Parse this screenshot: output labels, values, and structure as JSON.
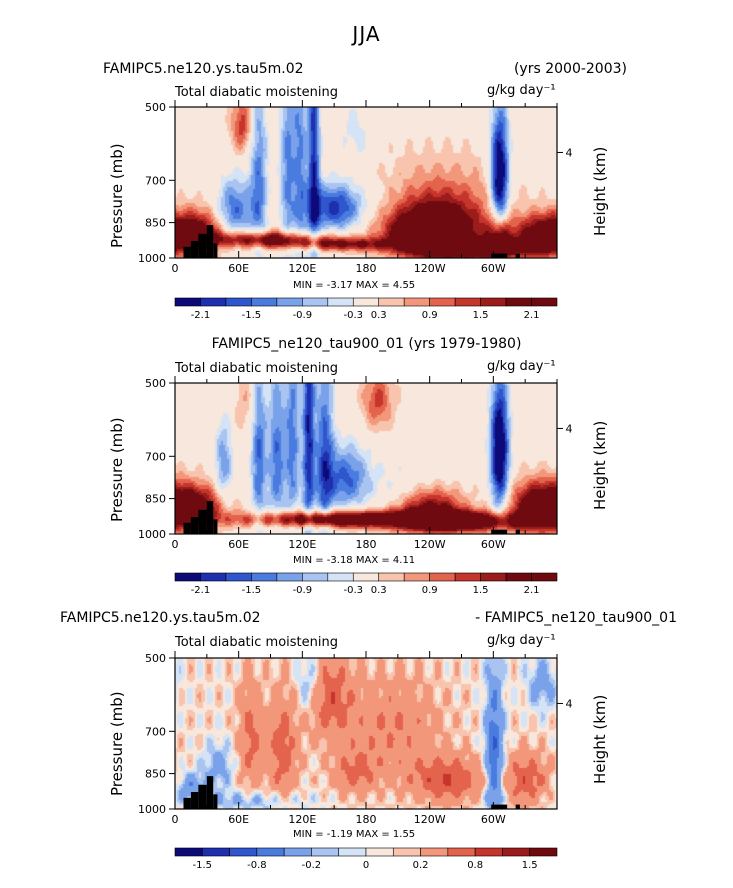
{
  "figure_title": "JJA",
  "colors": {
    "frame": "#000000",
    "terrain": "#000000",
    "palette": [
      "#0c0a78",
      "#1e2fb0",
      "#2f56cd",
      "#4a7ce0",
      "#7aa2ea",
      "#a9c4f0",
      "#d4e3f6",
      "#f7e7dc",
      "#f8c4ad",
      "#f3977b",
      "#e4634d",
      "#c6352c",
      "#9b1c1b",
      "#6e0a10"
    ]
  },
  "panels": [
    {
      "id": "p1",
      "header_left": "FAMIPC5.ne120.ys.tau5m.02",
      "header_right": "(yrs 2000-2003)",
      "header_center": "",
      "subtitle": "Total diabatic moistening",
      "units": "g/kg day⁻¹",
      "ylabel": "Pressure (mb)",
      "ylabel_right": "Height (km)",
      "stats": "MIN =   -3.17   MAX =    4.55",
      "cb_labels": [
        "-2.1",
        "-1.5",
        "-0.9",
        "-0.3",
        "0.3",
        "0.9",
        "1.5",
        "2.1"
      ]
    },
    {
      "id": "p2",
      "header_left": "",
      "header_right": "",
      "header_center": "FAMIPC5_ne120_tau900_01 (yrs 1979-1980)",
      "subtitle": "Total diabatic moistening",
      "units": "g/kg day⁻¹",
      "ylabel": "Pressure (mb)",
      "ylabel_right": "Height (km)",
      "stats": "MIN =   -3.18   MAX =    4.11",
      "cb_labels": [
        "-2.1",
        "-1.5",
        "-0.9",
        "-0.3",
        "0.3",
        "0.9",
        "1.5",
        "2.1"
      ]
    },
    {
      "id": "p3",
      "header_left": "FAMIPC5.ne120.ys.tau5m.02",
      "header_right": "- FAMIPC5_ne120_tau900_01",
      "header_center": "",
      "subtitle": "Total diabatic moistening",
      "units": "g/kg day⁻¹",
      "ylabel": "Pressure (mb)",
      "ylabel_right": "Height (km)",
      "stats": "MIN =   -1.19   MAX =    1.55",
      "cb_labels": [
        "-1.5",
        "-0.8",
        "-0.2",
        "0",
        "0.2",
        "0.8",
        "1.5"
      ]
    }
  ],
  "chart_data": {
    "type": "heatmap",
    "x_tick_labels": [
      "0",
      "60E",
      "120E",
      "180",
      "120W",
      "60W"
    ],
    "x_tick_lon": [
      0,
      60,
      120,
      180,
      240,
      300
    ],
    "x_range": [
      0,
      360
    ],
    "y_tick_labels": [
      "500",
      "700",
      "850",
      "1000"
    ],
    "y_tick_values": [
      500,
      700,
      850,
      1000
    ],
    "y_range": [
      500,
      1000
    ],
    "right_tick_labels": [
      "4"
    ],
    "right_tick_pressure": [
      616
    ],
    "panels": [
      {
        "name": "FAMIPC5.ne120.ys.tau5m.02",
        "min": -3.17,
        "max": 4.55,
        "contour_levels": [
          -2.1,
          -1.8,
          -1.5,
          -1.2,
          -0.9,
          -0.6,
          -0.3,
          0.3,
          0.6,
          0.9,
          1.2,
          1.5,
          1.8,
          2.1
        ],
        "terrain_blocks": [
          [
            8,
            15,
            950,
            1000
          ],
          [
            15,
            22,
            925,
            1000
          ],
          [
            22,
            30,
            895,
            1000
          ],
          [
            30,
            36,
            860,
            1000
          ],
          [
            36,
            40,
            935,
            1000
          ],
          [
            298,
            313,
            980,
            1000
          ],
          [
            321,
            325,
            980,
            1000
          ]
        ],
        "features": [
          {
            "lon": 62,
            "p": 540,
            "slon": 7,
            "sp": 50,
            "amp": 1.3
          },
          {
            "lon": 55,
            "p": 800,
            "slon": 12,
            "sp": 80,
            "amp": -1.6
          },
          {
            "lon": 78,
            "p": 700,
            "slon": 6,
            "sp": 200,
            "amp": -1.4
          },
          {
            "lon": 105,
            "p": 650,
            "slon": 5,
            "sp": 230,
            "amp": -1.3
          },
          {
            "lon": 117,
            "p": 640,
            "slon": 5,
            "sp": 260,
            "amp": -1.3
          },
          {
            "lon": 130,
            "p": 620,
            "slon": 4,
            "sp": 300,
            "amp": -2.0
          },
          {
            "lon": 150,
            "p": 790,
            "slon": 18,
            "sp": 60,
            "amp": -2.0
          },
          {
            "lon": 170,
            "p": 560,
            "slon": 12,
            "sp": 60,
            "amp": -0.5
          },
          {
            "lon": 240,
            "p": 880,
            "slon": 30,
            "sp": 70,
            "amp": 3.2
          },
          {
            "lon": 250,
            "p": 770,
            "slon": 40,
            "sp": 100,
            "amp": 1.0
          },
          {
            "lon": 305,
            "p": 690,
            "slon": 6,
            "sp": 140,
            "amp": -3.0
          },
          {
            "lon": 305,
            "p": 900,
            "slon": 8,
            "sp": 60,
            "amp": 2.0
          },
          {
            "lon": 345,
            "p": 900,
            "slon": 18,
            "sp": 60,
            "amp": 2.4
          },
          {
            "lon": 20,
            "p": 880,
            "slon": 18,
            "sp": 60,
            "amp": 2.0
          },
          {
            "lon": 85,
            "p": 915,
            "slon": 40,
            "sp": 25,
            "amp": 2.4
          },
          {
            "lon": 160,
            "p": 935,
            "slon": 35,
            "sp": 20,
            "amp": 1.6
          },
          {
            "lon": 280,
            "p": 955,
            "slon": 35,
            "sp": 30,
            "amp": 2.8
          },
          {
            "lon": 200,
            "p": 800,
            "slon": 30,
            "sp": 60,
            "amp": -0.3
          }
        ]
      },
      {
        "name": "FAMIPC5_ne120_tau900_01",
        "min": -3.18,
        "max": 4.11,
        "contour_levels": [
          -2.1,
          -1.8,
          -1.5,
          -1.2,
          -0.9,
          -0.6,
          -0.3,
          0.3,
          0.6,
          0.9,
          1.2,
          1.5,
          1.8,
          2.1
        ],
        "terrain_blocks": [
          [
            8,
            15,
            950,
            1000
          ],
          [
            15,
            22,
            925,
            1000
          ],
          [
            22,
            30,
            895,
            1000
          ],
          [
            30,
            36,
            860,
            1000
          ],
          [
            36,
            40,
            935,
            1000
          ],
          [
            298,
            313,
            980,
            1000
          ],
          [
            321,
            325,
            980,
            1000
          ]
        ],
        "features": [
          {
            "lon": 45,
            "p": 720,
            "slon": 6,
            "sp": 100,
            "amp": -1.2
          },
          {
            "lon": 65,
            "p": 540,
            "slon": 8,
            "sp": 60,
            "amp": 0.5
          },
          {
            "lon": 78,
            "p": 700,
            "slon": 5,
            "sp": 200,
            "amp": -1.6
          },
          {
            "lon": 95,
            "p": 700,
            "slon": 6,
            "sp": 200,
            "amp": -1.5
          },
          {
            "lon": 110,
            "p": 650,
            "slon": 5,
            "sp": 230,
            "amp": -1.4
          },
          {
            "lon": 125,
            "p": 620,
            "slon": 4,
            "sp": 300,
            "amp": -2.1
          },
          {
            "lon": 140,
            "p": 700,
            "slon": 6,
            "sp": 250,
            "amp": -1.6
          },
          {
            "lon": 160,
            "p": 770,
            "slon": 15,
            "sp": 80,
            "amp": -1.6
          },
          {
            "lon": 190,
            "p": 540,
            "slon": 10,
            "sp": 50,
            "amp": 1.2
          },
          {
            "lon": 240,
            "p": 890,
            "slon": 22,
            "sp": 60,
            "amp": 2.0
          },
          {
            "lon": 305,
            "p": 680,
            "slon": 6,
            "sp": 150,
            "amp": -3.0
          },
          {
            "lon": 345,
            "p": 880,
            "slon": 20,
            "sp": 70,
            "amp": 2.8
          },
          {
            "lon": 20,
            "p": 880,
            "slon": 18,
            "sp": 60,
            "amp": 2.0
          },
          {
            "lon": 150,
            "p": 930,
            "slon": 60,
            "sp": 25,
            "amp": 3.0
          },
          {
            "lon": 270,
            "p": 940,
            "slon": 40,
            "sp": 30,
            "amp": 2.8
          },
          {
            "lon": 210,
            "p": 800,
            "slon": 25,
            "sp": 70,
            "amp": -0.4
          }
        ]
      },
      {
        "name": "FAMIPC5.ne120.ys.tau5m.02 - FAMIPC5_ne120_tau900_01",
        "min": -1.19,
        "max": 1.55,
        "contour_levels": [
          -1.5,
          -1.2,
          -0.8,
          -0.5,
          -0.2,
          -0.1,
          0,
          0.1,
          0.2,
          0.5,
          0.8,
          1.0,
          1.5
        ],
        "terrain_blocks": [
          [
            8,
            15,
            950,
            1000
          ],
          [
            15,
            22,
            925,
            1000
          ],
          [
            22,
            30,
            895,
            1000
          ],
          [
            30,
            36,
            860,
            1000
          ],
          [
            36,
            40,
            935,
            1000
          ],
          [
            298,
            313,
            980,
            1000
          ],
          [
            321,
            325,
            980,
            1000
          ]
        ],
        "features": [
          {
            "lon": 15,
            "p": 900,
            "slon": 10,
            "sp": 40,
            "amp": -0.5
          },
          {
            "lon": 40,
            "p": 820,
            "slon": 10,
            "sp": 60,
            "amp": -0.4
          },
          {
            "lon": 70,
            "p": 720,
            "slon": 8,
            "sp": 120,
            "amp": 0.5
          },
          {
            "lon": 100,
            "p": 760,
            "slon": 10,
            "sp": 120,
            "amp": 0.6
          },
          {
            "lon": 125,
            "p": 560,
            "slon": 8,
            "sp": 60,
            "amp": -0.4
          },
          {
            "lon": 145,
            "p": 600,
            "slon": 15,
            "sp": 80,
            "amp": 0.6
          },
          {
            "lon": 170,
            "p": 840,
            "slon": 15,
            "sp": 60,
            "amp": 0.5
          },
          {
            "lon": 205,
            "p": 680,
            "slon": 30,
            "sp": 100,
            "amp": 0.4
          },
          {
            "lon": 255,
            "p": 870,
            "slon": 25,
            "sp": 60,
            "amp": 0.7
          },
          {
            "lon": 300,
            "p": 800,
            "slon": 6,
            "sp": 200,
            "amp": -0.9
          },
          {
            "lon": 330,
            "p": 870,
            "slon": 15,
            "sp": 70,
            "amp": 0.6
          },
          {
            "lon": 345,
            "p": 560,
            "slon": 10,
            "sp": 50,
            "amp": -0.4
          },
          {
            "lon": 65,
            "p": 960,
            "slon": 40,
            "sp": 30,
            "amp": -0.3
          }
        ]
      }
    ]
  }
}
